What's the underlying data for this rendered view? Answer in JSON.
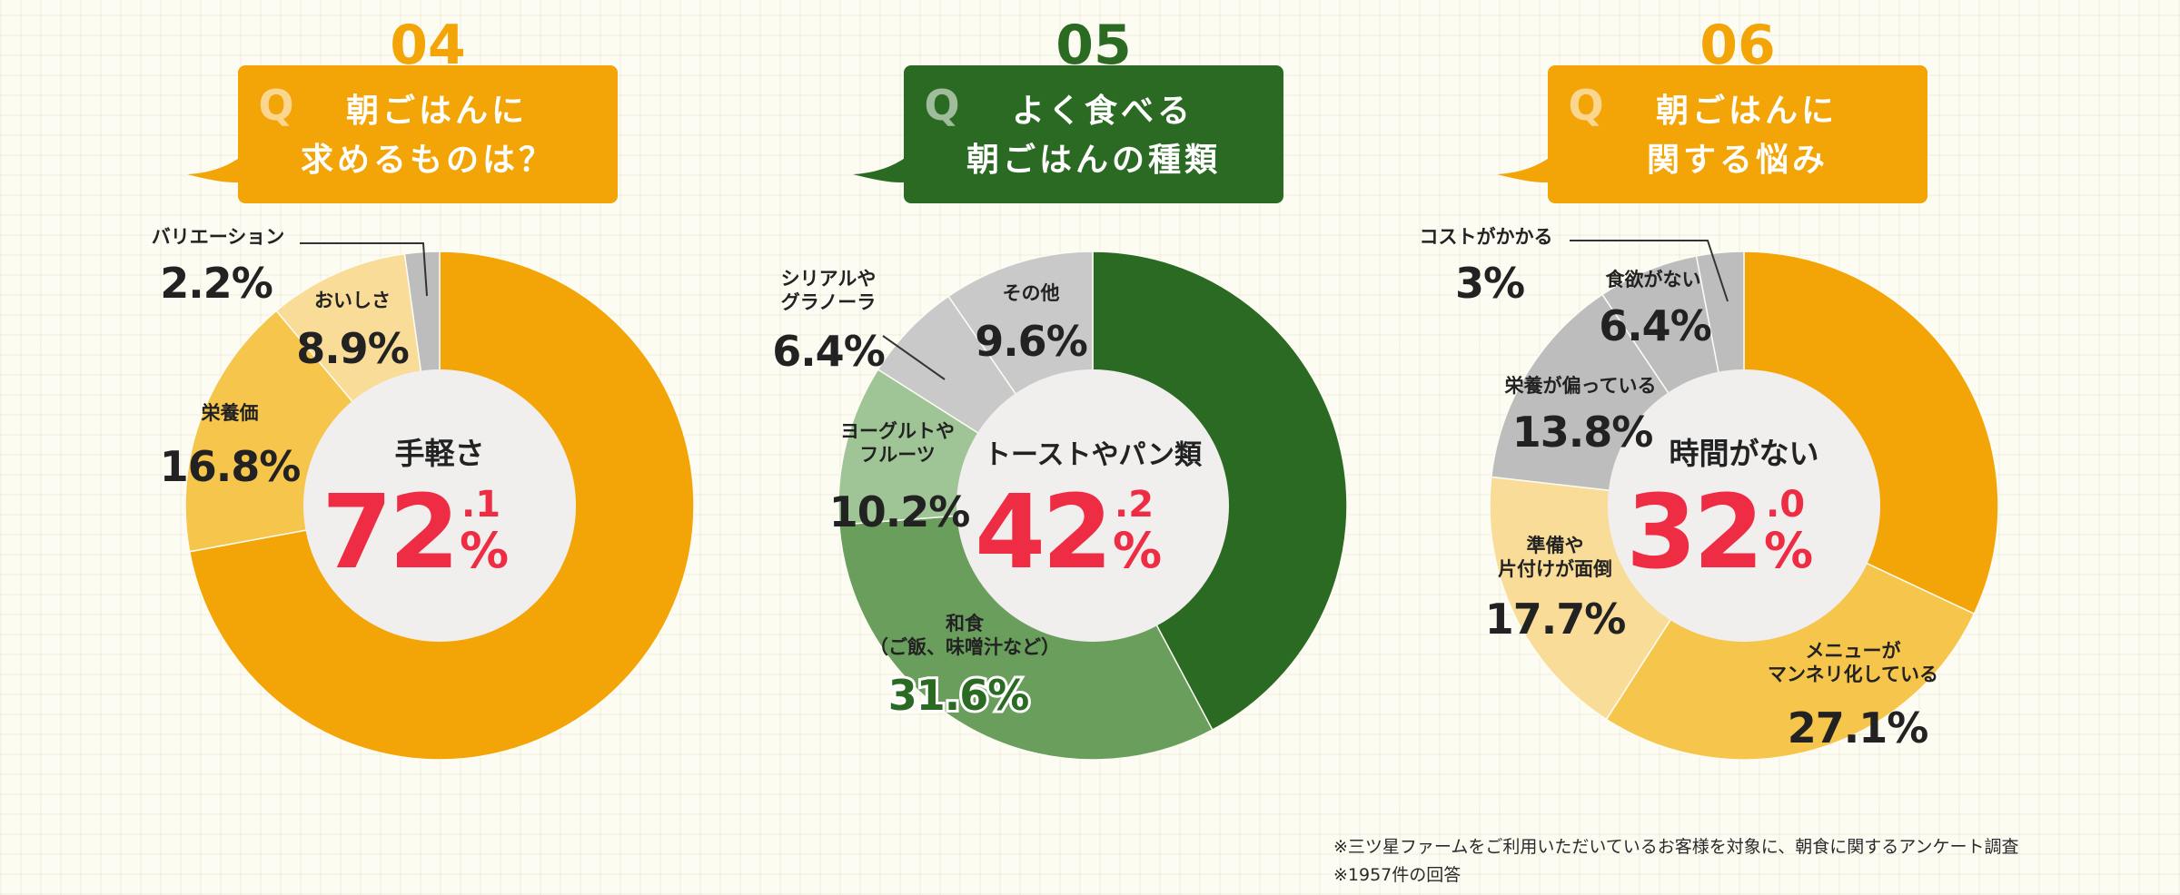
{
  "chart_data": [
    {
      "type": "pie",
      "number": "04",
      "question": [
        "朝ごはんに",
        "求めるものは？"
      ],
      "q_mark": "Q",
      "theme": {
        "primary": "#f3a508",
        "light": "#f6c54c",
        "lighter": "#f9dc98",
        "grey": "#bdbdbd",
        "number": "#f3a508"
      },
      "center_label": "手軽さ",
      "center_int": "72",
      "center_dec": ".1",
      "center_unit": "%",
      "slices": [
        {
          "label": "手軽さ",
          "value": 72.1,
          "display": ""
        },
        {
          "label": "栄養価",
          "value": 16.8,
          "display": "16.8%"
        },
        {
          "label": "おいしさ",
          "value": 8.9,
          "display": "8.9%"
        },
        {
          "label": "バリエーション",
          "value": 2.2,
          "display": "2.2%"
        }
      ]
    },
    {
      "type": "pie",
      "number": "05",
      "question": [
        "よく食べる",
        "朝ごはんの種類"
      ],
      "q_mark": "Q",
      "theme": {
        "primary": "#2b6a22",
        "light": "#6a9e5d",
        "lighter": "#9fc596",
        "grey": "#c9c9c9",
        "number": "#2b6a22"
      },
      "center_label": "トーストやパン類",
      "center_int": "42",
      "center_dec": ".2",
      "center_unit": "%",
      "slices": [
        {
          "label": "トーストやパン類",
          "value": 42.2,
          "display": ""
        },
        {
          "label": "和食（ご飯、味噌汁など）",
          "value": 31.6,
          "display": "31.6%"
        },
        {
          "label": "ヨーグルトやフルーツ",
          "value": 10.2,
          "display": "10.2%"
        },
        {
          "label": "シリアルやグラノーラ",
          "value": 6.4,
          "display": "6.4%"
        },
        {
          "label": "その他",
          "value": 9.6,
          "display": "9.6%"
        }
      ]
    },
    {
      "type": "pie",
      "number": "06",
      "question": [
        "朝ごはんに",
        "関する悩み"
      ],
      "q_mark": "Q",
      "theme": {
        "primary": "#f3a508",
        "light": "#f6c54c",
        "lighter": "#f9dc98",
        "grey": "#bdbdbd",
        "number": "#f3a508"
      },
      "center_label": "時間がない",
      "center_int": "32",
      "center_dec": ".0",
      "center_unit": "%",
      "slices": [
        {
          "label": "時間がない",
          "value": 32.0,
          "display": ""
        },
        {
          "label": "メニューがマンネリ化している",
          "value": 27.1,
          "display": "27.1%"
        },
        {
          "label": "準備や片付けが面倒",
          "value": 17.7,
          "display": "17.7%"
        },
        {
          "label": "栄養が偏っている",
          "value": 13.8,
          "display": "13.8%"
        },
        {
          "label": "食欲がない",
          "value": 6.4,
          "display": "6.4%"
        },
        {
          "label": "コストがかかる",
          "value": 3,
          "display": "3%"
        }
      ]
    }
  ],
  "slice_label_lines": [
    [
      [],
      [
        "栄養価"
      ],
      [
        "おいしさ"
      ],
      [
        "バリエーション"
      ]
    ],
    [
      [],
      [
        "和食",
        "（ご飯、味噌汁など）"
      ],
      [
        "ヨーグルトや",
        "フルーツ"
      ],
      [
        "シリアルや",
        "グラノーラ"
      ],
      [
        "その他"
      ]
    ],
    [
      [],
      [
        "メニューが",
        "マンネリ化している"
      ],
      [
        "準備や",
        "片付けが面倒"
      ],
      [
        "栄養が偏っている"
      ],
      [
        "食欲がない"
      ],
      [
        "コストがかかる"
      ]
    ]
  ],
  "footnotes": [
    "※三ツ星ファームをご利用いただいているお客様を対象に、朝食に関するアンケート調査",
    "※1957件の回答"
  ]
}
